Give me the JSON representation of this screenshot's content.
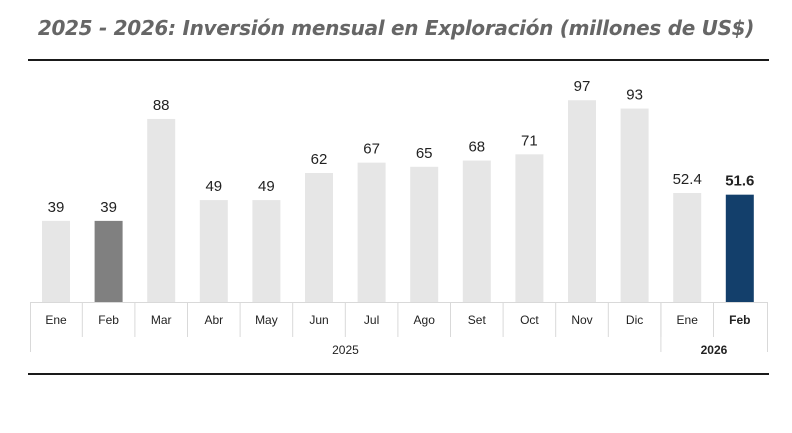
{
  "chart_data": {
    "type": "bar",
    "title": "2025 - 2026: Inversión mensual en Exploración (millones de US$)",
    "xlabel": "",
    "ylabel": "",
    "categories": [
      "Ene",
      "Feb",
      "Mar",
      "Abr",
      "May",
      "Jun",
      "Jul",
      "Ago",
      "Set",
      "Oct",
      "Nov",
      "Dic",
      "Ene",
      "Feb"
    ],
    "values": [
      39,
      39,
      88,
      49,
      49,
      62,
      67,
      65,
      68,
      71,
      97,
      93,
      52.4,
      51.6
    ],
    "labels": [
      "39",
      "39",
      "88",
      "49",
      "49",
      "62",
      "67",
      "65",
      "68",
      "71",
      "97",
      "93",
      "52.4",
      "51.6"
    ],
    "year_groups": [
      {
        "label": "2025",
        "count": 12
      },
      {
        "label": "2026",
        "count": 2
      }
    ],
    "highlight": {
      "1": "#808080",
      "13": "#133f6b"
    },
    "bold_labels": [
      13
    ],
    "colors": {
      "default": "#e6e6e6",
      "title": "#666666",
      "rule": "#1a1a1a",
      "axis": "#d9d9d9"
    },
    "ylim": [
      0,
      100
    ],
    "grid": false,
    "legend": "none"
  }
}
